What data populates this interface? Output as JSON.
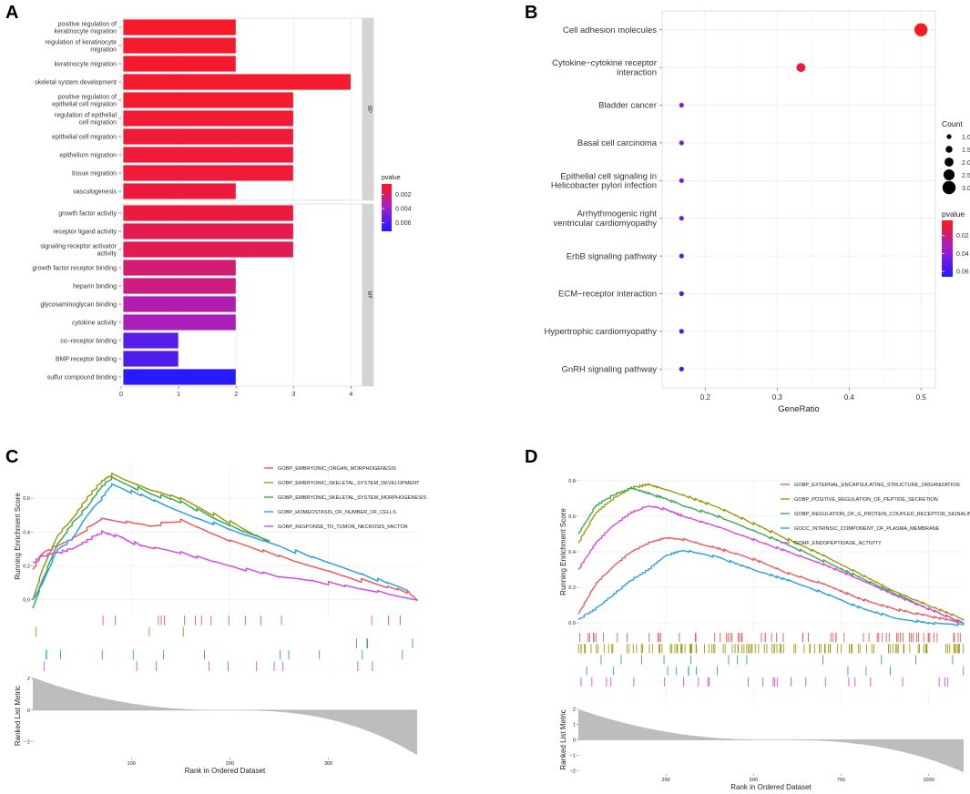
{
  "panel_labels": [
    "A",
    "B",
    "C",
    "D"
  ],
  "colors": {
    "high": "#ff1a1a",
    "mid": "#a31fc8",
    "low": "#1f1aff",
    "metric": "#bdbdbd",
    "strip": "#d4d4d4"
  },
  "chart_data": [
    {
      "panel": "A",
      "type": "bar",
      "orientation": "horizontal",
      "xlim": [
        0,
        4.2
      ],
      "xticks": [
        "0",
        "1",
        "2",
        "3",
        "4"
      ],
      "legend": {
        "title": "pvalue",
        "ticks": [
          "0.002",
          "0.004",
          "0.006"
        ],
        "range": [
          0.0005,
          0.0072
        ]
      },
      "facets": [
        {
          "label": "BP",
          "categories": [
            "positive regulation of\nkeratinocyte migration",
            "regulation of keratinocyte\nmigration",
            "keratinocyte migration",
            "skeletal system development",
            "positive regulation of\nepithelial cell migration",
            "regulation of epithelial\ncell migration",
            "epithelial cell migration",
            "epithelium migration",
            "tissue migration",
            "vasculogenesis"
          ],
          "values": [
            2,
            2,
            2,
            4,
            3,
            3,
            3,
            3,
            3,
            2
          ],
          "pvalues": [
            0.0008,
            0.0009,
            0.0009,
            0.0009,
            0.0009,
            0.001,
            0.0011,
            0.0011,
            0.0011,
            0.0012
          ]
        },
        {
          "label": "MF",
          "categories": [
            "growth factor activity",
            "receptor ligand activity",
            "signaling receptor activator\nactivity",
            "growth factor receptor binding",
            "heparin binding",
            "glycosaminoglycan binding",
            "cytokine activity",
            "co−receptor binding",
            "BMP receptor binding",
            "sulfur compound binding"
          ],
          "values": [
            3,
            3,
            3,
            2,
            2,
            2,
            2,
            1,
            1,
            2
          ],
          "pvalues": [
            0.0012,
            0.0015,
            0.0016,
            0.0022,
            0.0024,
            0.0034,
            0.0036,
            0.0058,
            0.006,
            0.007
          ]
        }
      ]
    },
    {
      "panel": "B",
      "type": "scatter",
      "xlabel": "GeneRatio",
      "xlim": [
        0.14,
        0.52
      ],
      "xticks": [
        "0.2",
        "0.3",
        "0.4",
        "0.5"
      ],
      "categories": [
        "Cell adhesion molecules",
        "Cytokine−cytokine receptor\ninteraction",
        "Bladder cancer",
        "Basal cell carcinoma",
        "Epithelial cell signaling in\nHelicobacter pylori infection",
        "Arrhythmogenic right\nventricular cardiomyopathy",
        "ErbB signaling pathway",
        "ECM−receptor interaction",
        "Hypertrophic cardiomyopathy",
        "GnRH signaling pathway"
      ],
      "gene_ratio": [
        0.5,
        0.333,
        0.167,
        0.167,
        0.167,
        0.167,
        0.167,
        0.167,
        0.167,
        0.167
      ],
      "count": [
        3,
        2,
        1,
        1,
        1,
        1,
        1,
        1,
        1,
        1
      ],
      "pvalues": [
        0.004,
        0.008,
        0.04,
        0.042,
        0.045,
        0.047,
        0.05,
        0.053,
        0.056,
        0.062
      ],
      "size_legend": {
        "title": "Count",
        "ticks": [
          "1.0",
          "1.5",
          "2.0",
          "2.5",
          "3.0"
        ]
      },
      "color_legend": {
        "title": "pvalue",
        "ticks": [
          "0.02",
          "0.04",
          "0.06"
        ],
        "range": [
          0.003,
          0.066
        ]
      }
    },
    {
      "panel": "C",
      "type": "line",
      "ylabel": "Running Enrichment Score",
      "ylabel2": "Ranked List Metric",
      "xlabel": "Rank in Ordered Dataset",
      "xlim": [
        0,
        390
      ],
      "ylim": [
        -0.05,
        0.8
      ],
      "yticks": [
        "0.0",
        "0.2",
        "0.4",
        "0.6"
      ],
      "xticks": [
        "100",
        "200",
        "300"
      ],
      "metric_yticks": [
        "2",
        "0",
        "−2"
      ],
      "metric_range": [
        -3,
        2.3
      ],
      "series": [
        {
          "name": "GOBP_EMBRYONIC_ORGAN_MORPHOGENESIS",
          "color": "#ef5a5a",
          "x": [
            0,
            10,
            25,
            40,
            55,
            70,
            95,
            120,
            150,
            200,
            250,
            300,
            350,
            380,
            390
          ],
          "y": [
            0.18,
            0.28,
            0.32,
            0.36,
            0.42,
            0.48,
            0.46,
            0.44,
            0.47,
            0.35,
            0.26,
            0.17,
            0.09,
            0.05,
            0.0
          ]
        },
        {
          "name": "GOBP_EMBRYONIC_SKELETAL_SYSTEM_DEVELOPMENT",
          "color": "#9a9a12",
          "x": [
            0,
            10,
            25,
            40,
            55,
            70,
            80,
            120,
            150,
            200,
            240
          ],
          "y": [
            0.0,
            0.18,
            0.38,
            0.48,
            0.6,
            0.7,
            0.74,
            0.65,
            0.6,
            0.46,
            0.34
          ]
        },
        {
          "name": "GOBP_EMBRYONIC_SKELETAL_SYSTEM_MORPHOGENESIS",
          "color": "#3aaa55",
          "x": [
            0,
            10,
            25,
            40,
            55,
            70,
            80,
            120,
            150,
            200,
            240
          ],
          "y": [
            -0.05,
            0.12,
            0.33,
            0.45,
            0.55,
            0.67,
            0.72,
            0.63,
            0.58,
            0.44,
            0.35
          ]
        },
        {
          "name": "GOBP_HOMEOSTASIS_OF_NUMBER_OF_CELLS",
          "color": "#2aa2df",
          "x": [
            0,
            10,
            25,
            40,
            55,
            70,
            80,
            110,
            150,
            200,
            250,
            300,
            350,
            380
          ],
          "y": [
            0.0,
            0.1,
            0.3,
            0.36,
            0.5,
            0.6,
            0.68,
            0.62,
            0.52,
            0.42,
            0.32,
            0.22,
            0.12,
            0.06
          ]
        },
        {
          "name": "GOBP_RESPONSE_TO_TUMOR_NECROSIS_FACTOR",
          "color": "#d84be0",
          "x": [
            0,
            10,
            25,
            40,
            55,
            70,
            90,
            110,
            150,
            200,
            250,
            300,
            350,
            390
          ],
          "y": [
            0.22,
            0.26,
            0.28,
            0.3,
            0.35,
            0.4,
            0.37,
            0.32,
            0.28,
            0.2,
            0.14,
            0.1,
            0.05,
            0.0
          ]
        }
      ]
    },
    {
      "panel": "D",
      "type": "line",
      "ylabel": "Running Enrichment Score",
      "ylabel2": "Ranked List Metric",
      "xlabel": "Rank in Ordered Dataset",
      "xlim": [
        0,
        1100
      ],
      "ylim": [
        -0.02,
        0.82
      ],
      "yticks": [
        "0.0",
        "0.2",
        "0.4",
        "0.6",
        "0.8"
      ],
      "xticks": [
        "250",
        "500",
        "750",
        "1000"
      ],
      "metric_yticks": [
        "2",
        "1",
        "0",
        "−1",
        "−2"
      ],
      "metric_range": [
        -2.2,
        2.2
      ],
      "series": [
        {
          "name": "GOBP_EXTERNAL_ENCAPSULATING_STRUCTURE_ORGANIZATION",
          "color": "#ef5a5a",
          "x": [
            0,
            50,
            100,
            150,
            200,
            250,
            300,
            400,
            500,
            600,
            700,
            800,
            900,
            1000,
            1100
          ],
          "y": [
            0.05,
            0.22,
            0.32,
            0.4,
            0.45,
            0.48,
            0.47,
            0.42,
            0.36,
            0.28,
            0.22,
            0.14,
            0.08,
            0.04,
            0.0
          ]
        },
        {
          "name": "GOBP_POSITIVE_REGULATION_OF_PEPTIDE_SECRETION",
          "color": "#9a9a12",
          "x": [
            0,
            50,
            100,
            150,
            200,
            250,
            300,
            400,
            500,
            600,
            700,
            800,
            900,
            1000,
            1100
          ],
          "y": [
            0.45,
            0.62,
            0.7,
            0.76,
            0.78,
            0.75,
            0.72,
            0.65,
            0.56,
            0.47,
            0.38,
            0.28,
            0.18,
            0.1,
            0.02
          ]
        },
        {
          "name": "GOBP_REGULATION_OF_G_PROTEIN_COUPLED_RECEPTOR_SIGNALING_PATHWAY",
          "color": "#3aaa55",
          "x": [
            0,
            50,
            100,
            150,
            200,
            250,
            300,
            400,
            500,
            600,
            700,
            800,
            900,
            1000,
            1100
          ],
          "y": [
            0.5,
            0.66,
            0.72,
            0.76,
            0.73,
            0.7,
            0.66,
            0.6,
            0.52,
            0.44,
            0.35,
            0.26,
            0.17,
            0.08,
            0.0
          ]
        },
        {
          "name": "GOCC_INTRINSIC_COMPONENT_OF_PLASMA_MEMBRANE",
          "color": "#2aa2df",
          "x": [
            0,
            50,
            100,
            150,
            200,
            250,
            300,
            400,
            500,
            600,
            700,
            800,
            900,
            1000,
            1100
          ],
          "y": [
            0.02,
            0.08,
            0.16,
            0.24,
            0.3,
            0.38,
            0.41,
            0.37,
            0.3,
            0.24,
            0.17,
            0.09,
            0.03,
            0.0,
            -0.01
          ]
        },
        {
          "name": "GOMF_ENDOPEPTIDASE_ACTIVITY",
          "color": "#d84be0",
          "x": [
            0,
            50,
            100,
            150,
            200,
            250,
            300,
            400,
            500,
            600,
            700,
            800,
            900,
            1000,
            1100
          ],
          "y": [
            0.3,
            0.45,
            0.55,
            0.62,
            0.66,
            0.64,
            0.6,
            0.54,
            0.47,
            0.4,
            0.33,
            0.25,
            0.16,
            0.08,
            0.0
          ]
        }
      ]
    }
  ]
}
